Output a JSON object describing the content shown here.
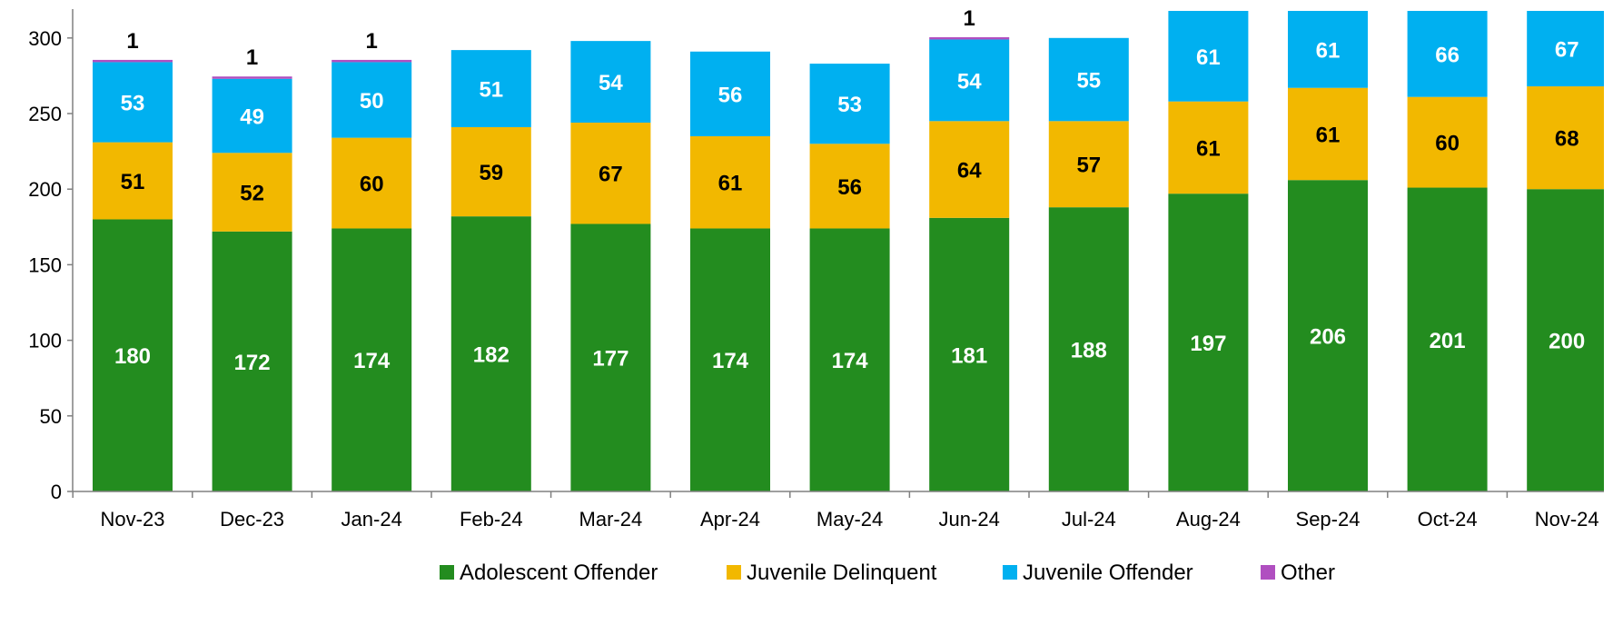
{
  "chart_data": {
    "type": "bar",
    "stacked": true,
    "title": "",
    "xlabel": "",
    "ylabel": "",
    "ylim": [
      0,
      320
    ],
    "yticks": [
      0,
      50,
      100,
      150,
      200,
      250,
      300
    ],
    "grid": false,
    "legend_position": "bottom-center",
    "categories": [
      "Nov-23",
      "Dec-23",
      "Jan-24",
      "Feb-24",
      "Mar-24",
      "Apr-24",
      "May-24",
      "Jun-24",
      "Jul-24",
      "Aug-24",
      "Sep-24",
      "Oct-24",
      "Nov-24"
    ],
    "series": [
      {
        "name": "Adolescent Offender",
        "color": "#238c1f",
        "label_color": "#ffffff",
        "values": [
          180,
          172,
          174,
          182,
          177,
          174,
          174,
          181,
          188,
          197,
          206,
          201,
          200
        ]
      },
      {
        "name": "Juvenile Delinquent",
        "color": "#f2b800",
        "label_color": "#000000",
        "values": [
          51,
          52,
          60,
          59,
          67,
          61,
          56,
          64,
          57,
          61,
          61,
          60,
          68
        ]
      },
      {
        "name": "Juvenile Offender",
        "color": "#00b0f0",
        "label_color": "#ffffff",
        "values": [
          53,
          49,
          50,
          51,
          54,
          56,
          53,
          54,
          55,
          61,
          61,
          66,
          67
        ]
      },
      {
        "name": "Other",
        "color": "#b04fc0",
        "label_color": "#000000",
        "values": [
          1,
          1,
          1,
          0,
          0,
          0,
          0,
          1,
          0,
          0,
          0,
          0,
          0
        ]
      }
    ]
  }
}
